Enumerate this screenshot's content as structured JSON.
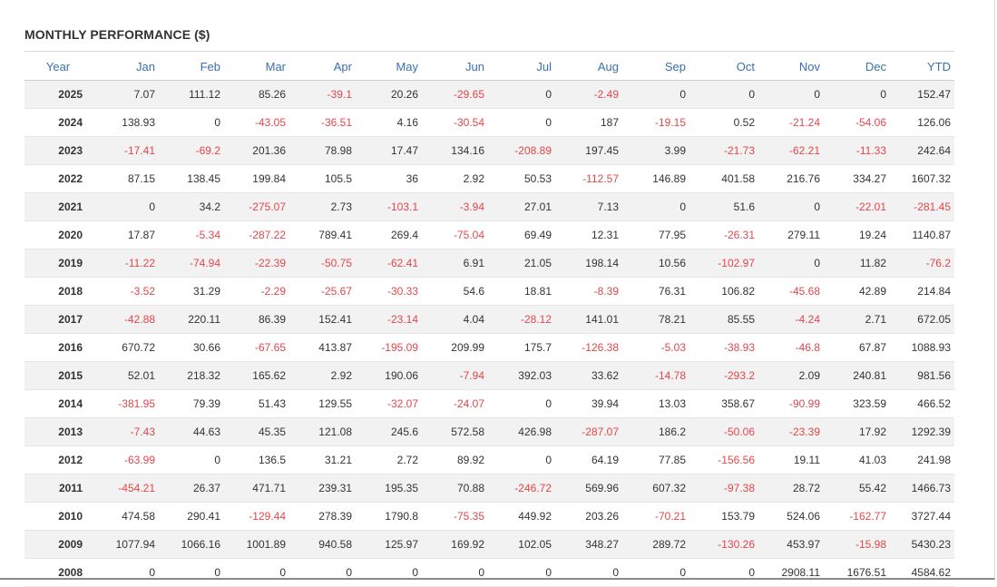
{
  "panel": {
    "title": "MONTHLY PERFORMANCE ($)"
  },
  "colors": {
    "header_text": "#3a6fb0",
    "negative_text": "#e2474b",
    "positive_text": "#333333",
    "odd_row_background": "#f2f2f2"
  },
  "table": {
    "columns": [
      "Year",
      "Jan",
      "Feb",
      "Mar",
      "Apr",
      "May",
      "Jun",
      "Jul",
      "Aug",
      "Sep",
      "Oct",
      "Nov",
      "Dec",
      "YTD"
    ],
    "rows": [
      [
        "2025",
        "7.07",
        "111.12",
        "85.26",
        "-39.1",
        "20.26",
        "-29.65",
        "0",
        "-2.49",
        "0",
        "0",
        "0",
        "0",
        "152.47"
      ],
      [
        "2024",
        "138.93",
        "0",
        "-43.05",
        "-36.51",
        "4.16",
        "-30.54",
        "0",
        "187",
        "-19.15",
        "0.52",
        "-21.24",
        "-54.06",
        "126.06"
      ],
      [
        "2023",
        "-17.41",
        "-69.2",
        "201.36",
        "78.98",
        "17.47",
        "134.16",
        "-208.89",
        "197.45",
        "3.99",
        "-21.73",
        "-62.21",
        "-11.33",
        "242.64"
      ],
      [
        "2022",
        "87.15",
        "138.45",
        "199.84",
        "105.5",
        "36",
        "2.92",
        "50.53",
        "-112.57",
        "146.89",
        "401.58",
        "216.76",
        "334.27",
        "1607.32"
      ],
      [
        "2021",
        "0",
        "34.2",
        "-275.07",
        "2.73",
        "-103.1",
        "-3.94",
        "27.01",
        "7.13",
        "0",
        "51.6",
        "0",
        "-22.01",
        "-281.45"
      ],
      [
        "2020",
        "17.87",
        "-5.34",
        "-287.22",
        "789.41",
        "269.4",
        "-75.04",
        "69.49",
        "12.31",
        "77.95",
        "-26.31",
        "279.11",
        "19.24",
        "1140.87"
      ],
      [
        "2019",
        "-11.22",
        "-74.94",
        "-22.39",
        "-50.75",
        "-62.41",
        "6.91",
        "21.05",
        "198.14",
        "10.56",
        "-102.97",
        "0",
        "11.82",
        "-76.2"
      ],
      [
        "2018",
        "-3.52",
        "31.29",
        "-2.29",
        "-25.67",
        "-30.33",
        "54.6",
        "18.81",
        "-8.39",
        "76.31",
        "106.82",
        "-45.68",
        "42.89",
        "214.84"
      ],
      [
        "2017",
        "-42.88",
        "220.11",
        "86.39",
        "152.41",
        "-23.14",
        "4.04",
        "-28.12",
        "141.01",
        "78.21",
        "85.55",
        "-4.24",
        "2.71",
        "672.05"
      ],
      [
        "2016",
        "670.72",
        "30.66",
        "-67.65",
        "413.87",
        "-195.09",
        "209.99",
        "175.7",
        "-126.38",
        "-5.03",
        "-38.93",
        "-46.8",
        "67.87",
        "1088.93"
      ],
      [
        "2015",
        "52.01",
        "218.32",
        "165.62",
        "2.92",
        "190.06",
        "-7.94",
        "392.03",
        "33.62",
        "-14.78",
        "-293.2",
        "2.09",
        "240.81",
        "981.56"
      ],
      [
        "2014",
        "-381.95",
        "79.39",
        "51.43",
        "129.55",
        "-32.07",
        "-24.07",
        "0",
        "39.94",
        "13.03",
        "358.67",
        "-90.99",
        "323.59",
        "466.52"
      ],
      [
        "2013",
        "-7.43",
        "44.63",
        "45.35",
        "121.08",
        "245.6",
        "572.58",
        "426.98",
        "-287.07",
        "186.2",
        "-50.06",
        "-23.39",
        "17.92",
        "1292.39"
      ],
      [
        "2012",
        "-63.99",
        "0",
        "136.5",
        "31.21",
        "2.72",
        "89.92",
        "0",
        "64.19",
        "77.85",
        "-156.56",
        "19.11",
        "41.03",
        "241.98"
      ],
      [
        "2011",
        "-454.21",
        "26.37",
        "471.71",
        "239.31",
        "195.35",
        "70.88",
        "-246.72",
        "569.96",
        "607.32",
        "-97.38",
        "28.72",
        "55.42",
        "1466.73"
      ],
      [
        "2010",
        "474.58",
        "290.41",
        "-129.44",
        "278.39",
        "1790.8",
        "-75.35",
        "449.92",
        "203.26",
        "-70.21",
        "153.79",
        "524.06",
        "-162.77",
        "3727.44"
      ],
      [
        "2009",
        "1077.94",
        "1066.16",
        "1001.89",
        "940.58",
        "125.97",
        "169.92",
        "102.05",
        "348.27",
        "289.72",
        "-130.26",
        "453.97",
        "-15.98",
        "5430.23"
      ],
      [
        "2008",
        "0",
        "0",
        "0",
        "0",
        "0",
        "0",
        "0",
        "0",
        "0",
        "0",
        "2908.11",
        "1676.51",
        "4584.62"
      ]
    ]
  }
}
